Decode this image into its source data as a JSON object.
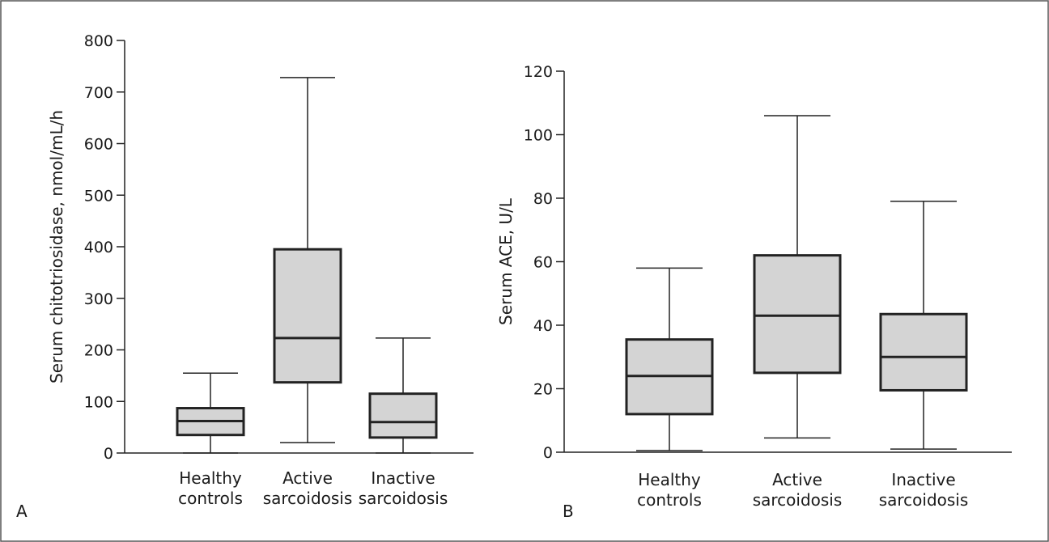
{
  "chart_data": [
    {
      "type": "box",
      "panel_label": "A",
      "ylabel": "Serum chitotriosidase, nmol/mL/h",
      "xlabel": "",
      "ylim": [
        0,
        800
      ],
      "yticks": [
        0,
        100,
        200,
        300,
        400,
        500,
        600,
        700,
        800
      ],
      "categories": [
        "Healthy\ncontrols",
        "Active\nsarcoidosis",
        "Inactive\nsarcoidosis"
      ],
      "boxes": [
        {
          "min": 0,
          "q1": 35,
          "median": 62,
          "q3": 87,
          "max": 155
        },
        {
          "min": 20,
          "q1": 137,
          "median": 223,
          "q3": 395,
          "max": 728
        },
        {
          "min": 0,
          "q1": 30,
          "median": 60,
          "q3": 115,
          "max": 223
        }
      ],
      "box_fill": "#d4d4d4"
    },
    {
      "type": "box",
      "panel_label": "B",
      "ylabel": "Serum ACE, U/L",
      "xlabel": "",
      "ylim": [
        0,
        120
      ],
      "yticks": [
        0,
        20,
        40,
        60,
        80,
        100,
        120
      ],
      "categories": [
        "Healthy\ncontrols",
        "Active\nsarcoidosis",
        "Inactive\nsarcoidosis"
      ],
      "boxes": [
        {
          "min": 0.5,
          "q1": 12,
          "median": 24,
          "q3": 35.5,
          "max": 58
        },
        {
          "min": 4.5,
          "q1": 25,
          "median": 43,
          "q3": 62,
          "max": 106
        },
        {
          "min": 1,
          "q1": 19.5,
          "median": 30,
          "q3": 43.5,
          "max": 79
        }
      ],
      "box_fill": "#d4d4d4"
    }
  ]
}
